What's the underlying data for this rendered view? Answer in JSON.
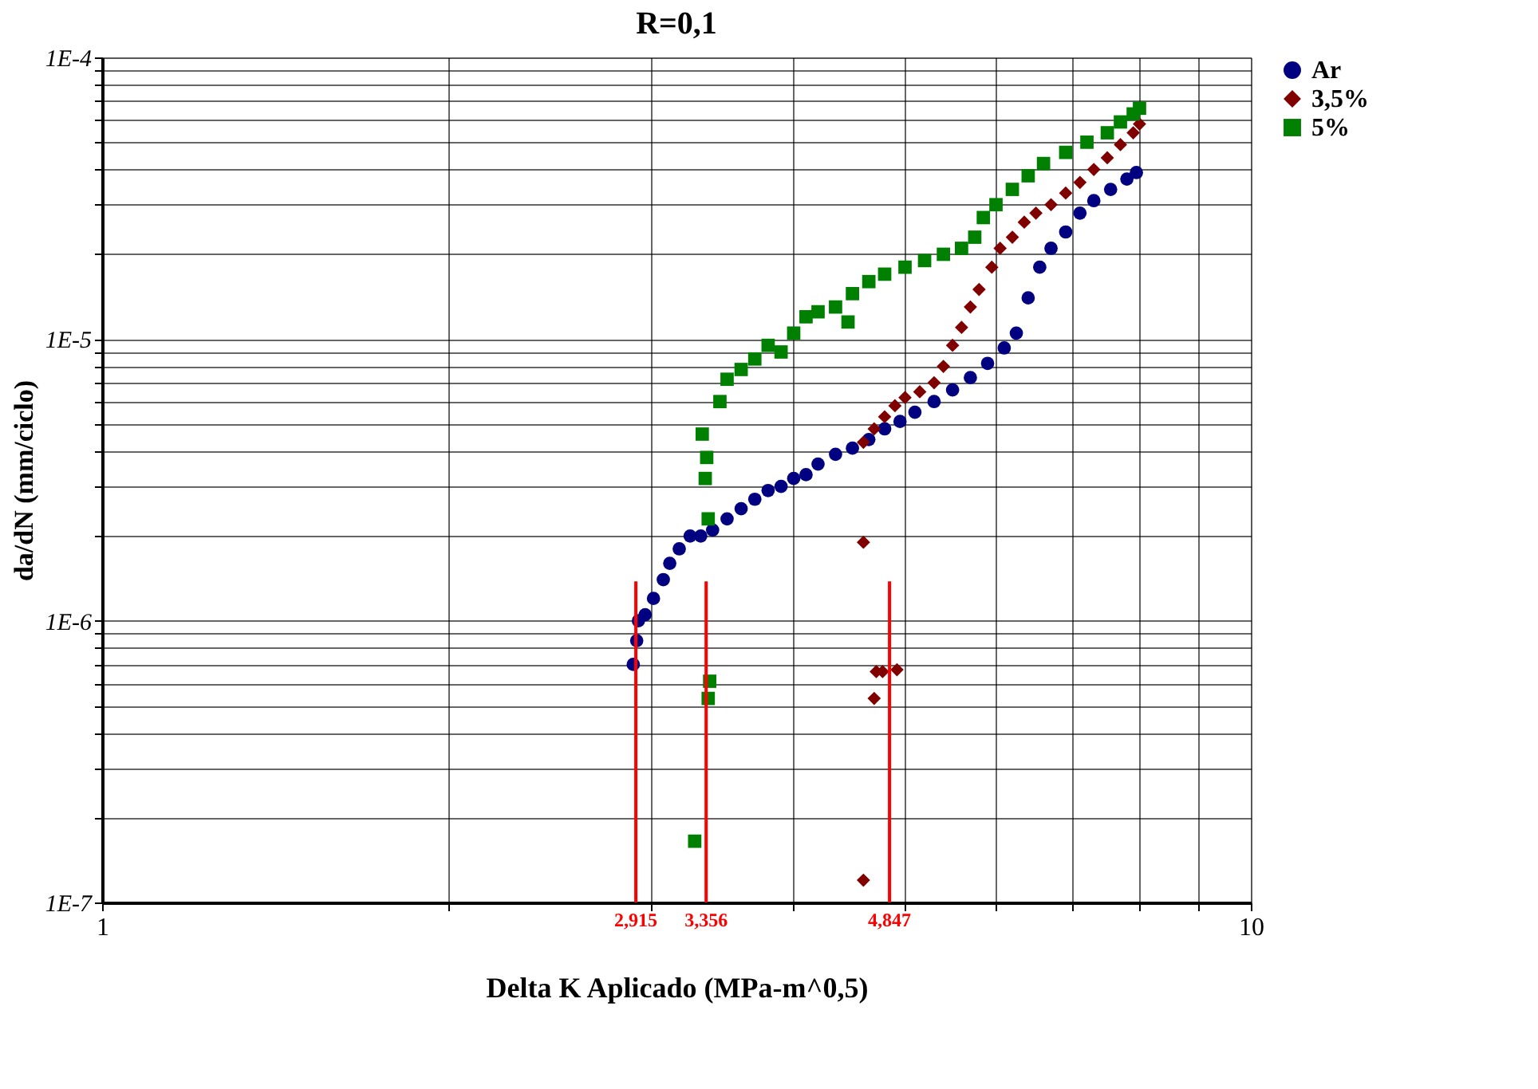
{
  "chart_data": {
    "type": "scatter",
    "title": "R=0,1",
    "xlabel": "Delta K Aplicado (MPa-m^0,5)",
    "ylabel": "da/dN (mm/ciclo)",
    "log": "xy",
    "grid": true,
    "legend": "right",
    "xlim": [
      1,
      10
    ],
    "ylim": [
      1e-07,
      0.0001
    ],
    "xticks": [
      {
        "value": 1,
        "label": "1"
      },
      {
        "value": 2,
        "label": null
      },
      {
        "value": 3,
        "label": null
      },
      {
        "value": 4,
        "label": null
      },
      {
        "value": 5,
        "label": null
      },
      {
        "value": 6,
        "label": null
      },
      {
        "value": 7,
        "label": null
      },
      {
        "value": 8,
        "label": null
      },
      {
        "value": 9,
        "label": null
      },
      {
        "value": 10,
        "label": "10"
      }
    ],
    "yticks": [
      {
        "value": 1e-07,
        "label": "1E-7"
      },
      {
        "value": 2e-07,
        "label": null
      },
      {
        "value": 3e-07,
        "label": null
      },
      {
        "value": 4e-07,
        "label": null
      },
      {
        "value": 5e-07,
        "label": null
      },
      {
        "value": 6e-07,
        "label": null
      },
      {
        "value": 7e-07,
        "label": null
      },
      {
        "value": 8e-07,
        "label": null
      },
      {
        "value": 9e-07,
        "label": null
      },
      {
        "value": 1e-06,
        "label": "1E-6"
      },
      {
        "value": 2e-06,
        "label": null
      },
      {
        "value": 3e-06,
        "label": null
      },
      {
        "value": 4e-06,
        "label": null
      },
      {
        "value": 5e-06,
        "label": null
      },
      {
        "value": 6e-06,
        "label": null
      },
      {
        "value": 7e-06,
        "label": null
      },
      {
        "value": 8e-06,
        "label": null
      },
      {
        "value": 9e-06,
        "label": null
      },
      {
        "value": 1e-05,
        "label": "1E-5"
      },
      {
        "value": 2e-05,
        "label": null
      },
      {
        "value": 3e-05,
        "label": null
      },
      {
        "value": 4e-05,
        "label": null
      },
      {
        "value": 5e-05,
        "label": null
      },
      {
        "value": 6e-05,
        "label": null
      },
      {
        "value": 7e-05,
        "label": null
      },
      {
        "value": 8e-05,
        "label": null
      },
      {
        "value": 9e-05,
        "label": null
      },
      {
        "value": 0.0001,
        "label": "1E-4"
      }
    ],
    "series": [
      {
        "name": "Ar",
        "color": "#000080",
        "marker": "circle",
        "x": [
          2.9,
          2.92,
          2.93,
          2.97,
          3.02,
          3.08,
          3.12,
          3.18,
          3.25,
          3.32,
          3.4,
          3.5,
          3.6,
          3.7,
          3.8,
          3.9,
          4.0,
          4.1,
          4.2,
          4.35,
          4.5,
          4.65,
          4.8,
          4.95,
          5.1,
          5.3,
          5.5,
          5.7,
          5.9,
          6.1,
          6.25,
          6.4,
          6.55,
          6.7,
          6.9,
          7.1,
          7.3,
          7.55,
          7.8,
          7.95
        ],
        "values": [
          7e-07,
          8.5e-07,
          1e-06,
          1.05e-06,
          1.2e-06,
          1.4e-06,
          1.6e-06,
          1.8e-06,
          2e-06,
          2e-06,
          2.1e-06,
          2.3e-06,
          2.5e-06,
          2.7e-06,
          2.9e-06,
          3e-06,
          3.2e-06,
          3.3e-06,
          3.6e-06,
          3.9e-06,
          4.1e-06,
          4.4e-06,
          4.8e-06,
          5.1e-06,
          5.5e-06,
          6e-06,
          6.6e-06,
          7.3e-06,
          8.2e-06,
          9.3e-06,
          1.05e-05,
          1.4e-05,
          1.8e-05,
          2.1e-05,
          2.4e-05,
          2.8e-05,
          3.1e-05,
          3.4e-05,
          3.7e-05,
          3.9e-05
        ]
      },
      {
        "name": "3,5%",
        "color": "#800000",
        "marker": "diamond",
        "x": [
          4.6,
          4.6,
          4.7,
          4.72,
          4.78,
          4.92,
          4.6,
          4.7,
          4.8,
          4.9,
          5.0,
          5.15,
          5.3,
          5.4,
          5.5,
          5.6,
          5.7,
          5.8,
          5.95,
          6.05,
          6.2,
          6.35,
          6.5,
          6.7,
          6.9,
          7.1,
          7.3,
          7.5,
          7.7,
          7.9,
          8.0
        ],
        "values": [
          1.9e-06,
          1.2e-07,
          5.3e-07,
          6.6e-07,
          6.6e-07,
          6.7e-07,
          4.3e-06,
          4.8e-06,
          5.3e-06,
          5.8e-06,
          6.2e-06,
          6.5e-06,
          7e-06,
          8e-06,
          9.5e-06,
          1.1e-05,
          1.3e-05,
          1.5e-05,
          1.8e-05,
          2.1e-05,
          2.3e-05,
          2.6e-05,
          2.8e-05,
          3e-05,
          3.3e-05,
          3.6e-05,
          4e-05,
          4.4e-05,
          4.9e-05,
          5.4e-05,
          5.8e-05
        ]
      },
      {
        "name": "5%",
        "color": "#008000",
        "marker": "square",
        "x": [
          3.28,
          3.37,
          3.38,
          3.37,
          3.35,
          3.36,
          3.33,
          3.45,
          3.5,
          3.6,
          3.7,
          3.8,
          3.9,
          4.0,
          4.1,
          4.2,
          4.35,
          4.46,
          4.5,
          4.65,
          4.8,
          5.0,
          5.2,
          5.4,
          5.6,
          5.75,
          5.85,
          6.0,
          6.2,
          6.4,
          6.6,
          6.9,
          7.2,
          7.5,
          7.7,
          7.9,
          8.0
        ],
        "values": [
          1.65e-07,
          5.3e-07,
          6.1e-07,
          2.3e-06,
          3.2e-06,
          3.8e-06,
          4.6e-06,
          6e-06,
          7.2e-06,
          7.8e-06,
          8.5e-06,
          9.5e-06,
          9e-06,
          1.05e-05,
          1.2e-05,
          1.25e-05,
          1.3e-05,
          1.15e-05,
          1.45e-05,
          1.6e-05,
          1.7e-05,
          1.8e-05,
          1.9e-05,
          2e-05,
          2.1e-05,
          2.3e-05,
          2.7e-05,
          3e-05,
          3.4e-05,
          3.8e-05,
          4.2e-05,
          4.6e-05,
          5e-05,
          5.4e-05,
          5.9e-05,
          6.3e-05,
          6.6e-05
        ]
      }
    ],
    "ref_lines": [
      {
        "axis": "x",
        "value": 2.915,
        "label": "2,915",
        "color": "#ff0000"
      },
      {
        "axis": "x",
        "value": 3.356,
        "label": "3,356",
        "color": "#ff0000"
      },
      {
        "axis": "x",
        "value": 4.847,
        "label": "4,847",
        "color": "#ff0000"
      }
    ]
  }
}
